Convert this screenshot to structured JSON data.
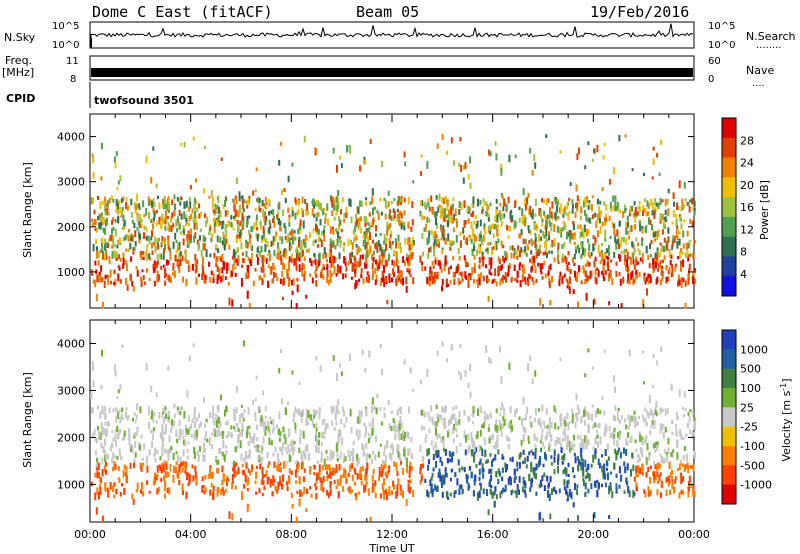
{
  "header": {
    "title": "Dome C East (fitACF)",
    "beam": "Beam 05",
    "date": "19/Feb/2016"
  },
  "strips": {
    "nsky_label": "N.Sky",
    "nsky_top": "10^5",
    "nsky_bottom": "10^0",
    "nsearch_label": "N.Search",
    "nsearch_dots": "........",
    "nsearch_top": "10^5",
    "nsearch_bottom": "10^0",
    "freq_label": "Freq.",
    "freq_unit": "[MHz]",
    "freq_top": "11",
    "freq_bottom": "8",
    "nave_label": "Nave",
    "nave_dots": "....",
    "nave_top": "60",
    "nave_bottom": "0",
    "cpid_label": "CPID",
    "cpid_value": "twofsound 3501"
  },
  "colors": {
    "power_scale": [
      "#1010e0",
      "#2040a0",
      "#307050",
      "#50a050",
      "#a0c040",
      "#f0c000",
      "#f08000",
      "#e04000",
      "#e00000"
    ],
    "velocity_scale": [
      "#e00000",
      "#ff4000",
      "#ff8000",
      "#f0c000",
      "#c8c8c8",
      "#70b030",
      "#408040",
      "#2060a0",
      "#2040c0"
    ]
  },
  "chart_data": [
    {
      "type": "heatmap",
      "panel": "power",
      "xlabel": "",
      "ylabel": "Slant Range [km]",
      "ylim": [
        200,
        4500
      ],
      "yticks": [
        1000,
        2000,
        3000,
        4000
      ],
      "x_ticks": [
        "00:00",
        "04:00",
        "08:00",
        "12:00",
        "16:00",
        "20:00",
        "00:00"
      ],
      "colorbar_label": "Power [dB]",
      "colorbar_ticks": [
        4,
        8,
        12,
        16,
        20,
        24,
        28
      ],
      "clim": [
        0,
        32
      ]
    },
    {
      "type": "heatmap",
      "panel": "velocity",
      "xlabel": "Time UT",
      "ylabel": "Slant Range [km]",
      "ylim": [
        200,
        4500
      ],
      "yticks": [
        1000,
        2000,
        3000,
        4000
      ],
      "x_ticks": [
        "00:00",
        "04:00",
        "08:00",
        "12:00",
        "16:00",
        "20:00",
        "00:00"
      ],
      "colorbar_label": "Velocity [m s^-1]",
      "colorbar_ticks": [
        "1000",
        "500",
        "100",
        "25",
        "-25",
        "-100",
        "-500",
        "-1000"
      ]
    }
  ]
}
